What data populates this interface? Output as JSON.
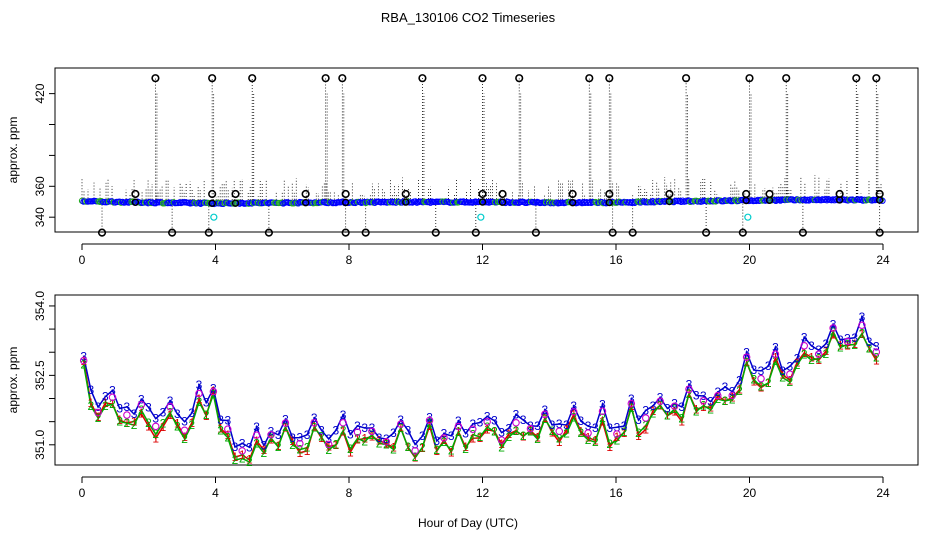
{
  "figure": {
    "title": "RBA_130106  CO2 Timeseries",
    "xlabel": "Hour of Day (UTC)"
  },
  "chart_data": [
    {
      "type": "scatter",
      "panel": "top",
      "ylabel": "approx. ppm",
      "xlim": [
        0,
        24
      ],
      "ylim": [
        333,
        434
      ],
      "x_ticks": [
        "0",
        "4",
        "8",
        "12",
        "16",
        "20",
        "24"
      ],
      "y_ticks": [
        "340",
        "360",
        "420"
      ],
      "y_tick_values": [
        340,
        360,
        420
      ],
      "series": [
        {
          "marker": "circle",
          "color": "#0000ff",
          "baseline": [
            [
              0.0,
              350.3
            ],
            [
              2.0,
              349.5
            ],
            [
              4.0,
              349.0
            ],
            [
              6.0,
              349.3
            ],
            [
              8.0,
              349.6
            ],
            [
              10.0,
              349.8
            ],
            [
              12.0,
              349.8
            ],
            [
              14.0,
              349.4
            ],
            [
              16.0,
              349.5
            ],
            [
              18.0,
              350.3
            ],
            [
              20.0,
              350.8
            ],
            [
              22.0,
              351.3
            ],
            [
              24.0,
              351.0
            ]
          ]
        }
      ],
      "high_outliers": [
        2.2,
        3.9,
        5.1,
        7.3,
        7.8,
        10.2,
        12.0,
        13.1,
        15.2,
        15.8,
        18.1,
        20.0,
        21.1,
        23.2,
        23.8
      ],
      "high_value": 430,
      "mid_outliers": [
        1.6,
        3.9,
        4.6,
        6.7,
        7.9,
        9.7,
        12.0,
        12.6,
        14.7,
        15.8,
        17.6,
        19.9,
        20.6,
        22.7,
        23.9
      ],
      "mid_value": 355,
      "low_outliers": [
        0.6,
        2.7,
        3.8,
        5.6,
        7.9,
        8.5,
        10.6,
        11.8,
        13.6,
        15.9,
        16.5,
        18.7,
        19.8,
        21.6,
        23.9
      ],
      "low_value": 330,
      "cyan_points": [
        [
          3.95,
          340
        ],
        [
          11.95,
          340
        ],
        [
          19.95,
          340
        ]
      ]
    },
    {
      "type": "line",
      "panel": "bottom",
      "ylabel": "approx. ppm",
      "xlim": [
        0,
        24
      ],
      "ylim": [
        350.65,
        354.15
      ],
      "x_ticks": [
        "0",
        "4",
        "8",
        "12",
        "16",
        "20",
        "24"
      ],
      "y_ticks": [
        "351.0",
        "352.5",
        "354.0"
      ],
      "y_tick_values": [
        351.0,
        352.5,
        354.0
      ],
      "series": [
        {
          "name": "1",
          "color": "#dd0000"
        },
        {
          "name": "2",
          "color": "#00aa00"
        },
        {
          "name": "3",
          "color": "#0000cc"
        }
      ],
      "anchors": [
        [
          0.0,
          352.6
        ],
        [
          0.3,
          351.9
        ],
        [
          1.0,
          351.8
        ],
        [
          2.0,
          351.7
        ],
        [
          3.0,
          351.5
        ],
        [
          4.0,
          352.2
        ],
        [
          4.3,
          351.0
        ],
        [
          6.0,
          351.1
        ],
        [
          8.0,
          351.2
        ],
        [
          10.0,
          351.1
        ],
        [
          12.0,
          351.3
        ],
        [
          14.0,
          351.3
        ],
        [
          16.0,
          351.4
        ],
        [
          18.0,
          351.8
        ],
        [
          19.0,
          351.9
        ],
        [
          20.0,
          352.6
        ],
        [
          21.0,
          352.6
        ],
        [
          22.0,
          353.1
        ],
        [
          23.0,
          353.4
        ],
        [
          23.8,
          353.2
        ]
      ]
    }
  ]
}
